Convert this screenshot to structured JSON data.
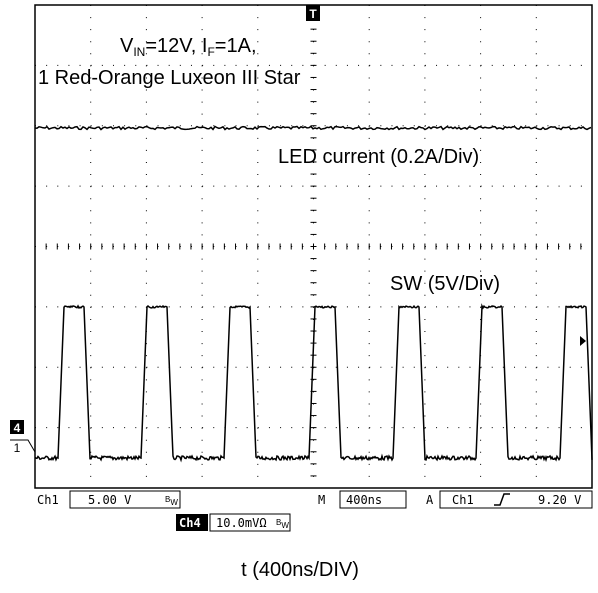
{
  "annotations": {
    "condition": {
      "v": "V",
      "v_sub": "IN",
      "v_rest": "=12V, I",
      "i_sub": "F",
      "i_rest": "=1A,"
    },
    "device": "1 Red-Orange Luxeon III Star",
    "led_label": "LED current (0.2A/Div)",
    "sw_label": "SW (5V/Div)"
  },
  "markers": {
    "trigger": "T",
    "ch4": "4",
    "ch1": "1"
  },
  "readout": {
    "ch1_name": "Ch1",
    "ch1_scale": "5.00 V",
    "bw": "B",
    "bw_sub": "W",
    "time_prefix": "M",
    "time_scale": "400ns",
    "trig_prefix": "A",
    "trig_source": "Ch1",
    "trig_level": "9.20 V",
    "ch4_name": "Ch4",
    "ch4_scale": "10.0mVΩ"
  },
  "x_label": "t (400ns/DIV)"
}
